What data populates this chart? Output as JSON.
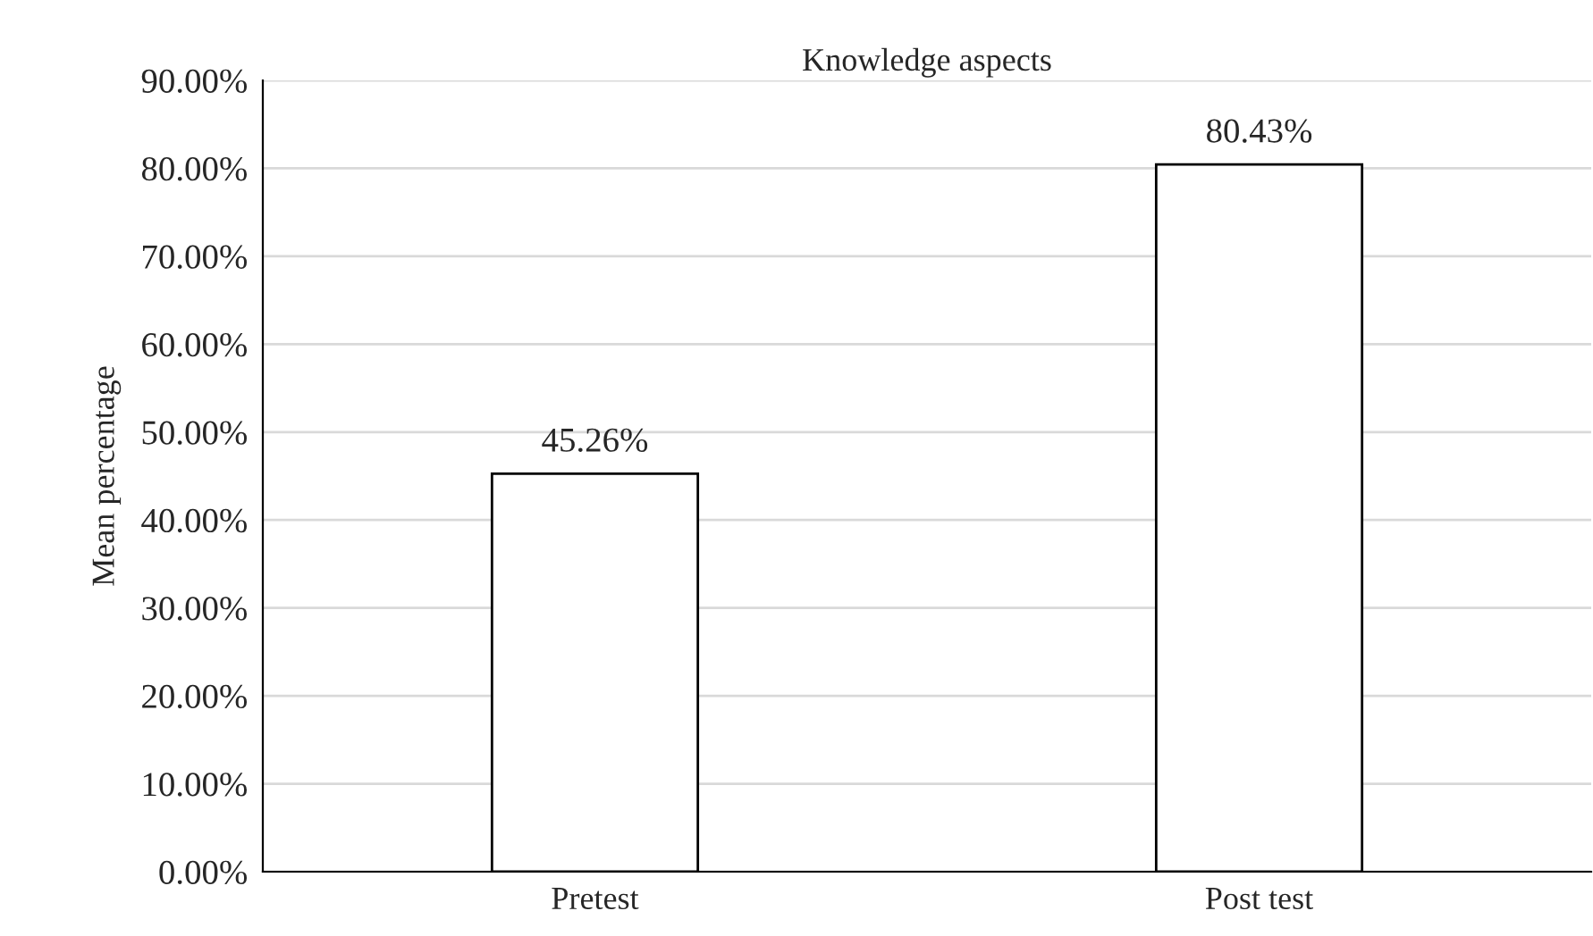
{
  "chart_data": {
    "type": "bar",
    "title": "Knowledge aspects",
    "ylabel": "Mean percentage",
    "categories": [
      "Pretest",
      "Post test"
    ],
    "values": [
      45.26,
      80.43
    ],
    "value_labels": [
      "45.26%",
      "80.43%"
    ],
    "color": "#ffffff",
    "ylim": [
      0,
      90
    ],
    "yticks": [
      {
        "value": 0,
        "label": "0.00%"
      },
      {
        "value": 10,
        "label": "10.00%"
      },
      {
        "value": 20,
        "label": "20.00%"
      },
      {
        "value": 30,
        "label": "30.00%"
      },
      {
        "value": 40,
        "label": "40.00%"
      },
      {
        "value": 50,
        "label": "50.00%"
      },
      {
        "value": 60,
        "label": "60.00%"
      },
      {
        "value": 70,
        "label": "70.00%"
      },
      {
        "value": 80,
        "label": "80.00%"
      },
      {
        "value": 90,
        "label": "90.00%"
      }
    ],
    "grid": "y",
    "legend": false
  }
}
